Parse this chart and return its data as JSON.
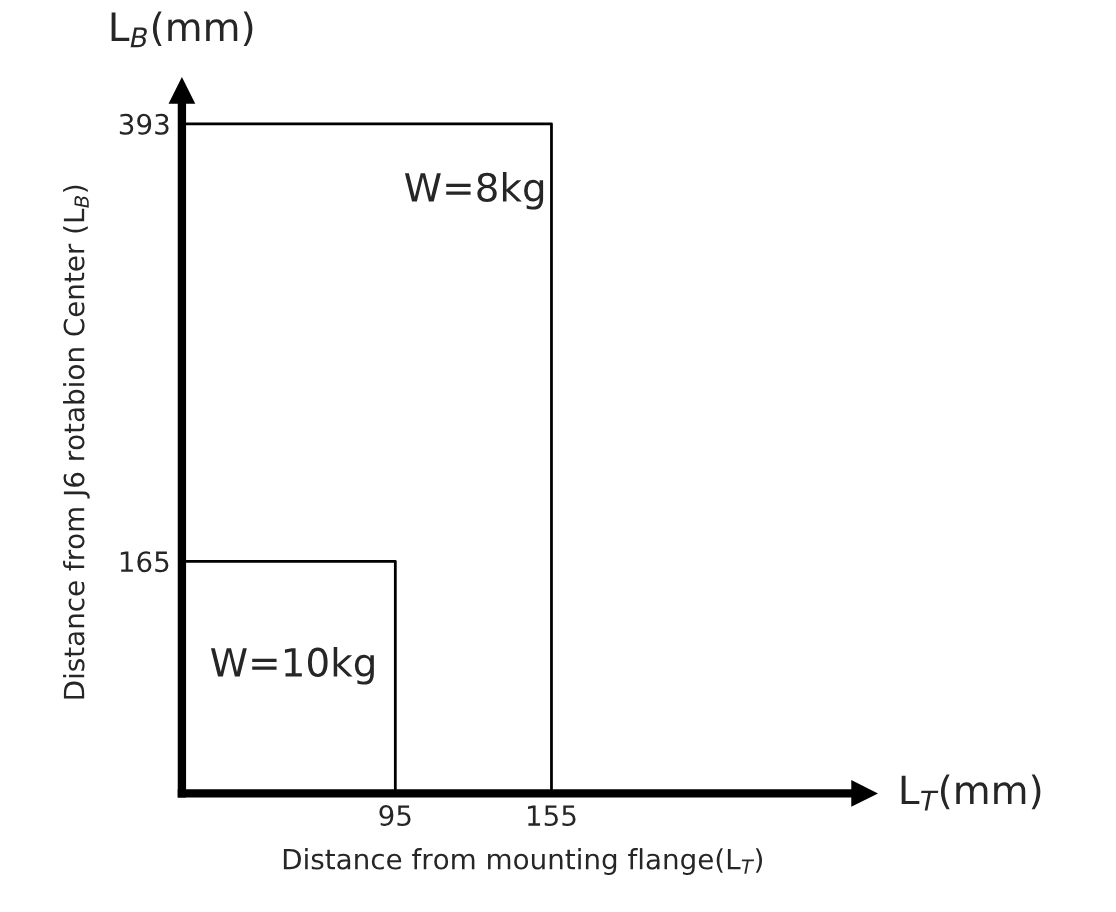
{
  "chart_data": {
    "type": "line",
    "xlabel": "Distance from mounting flange(L$_{T}$)",
    "ylabel": "Distance from J6 rotabion Center (L$_{B}$)",
    "annotations": [
      "L$_{T}$(mm)",
      "L$_{B}$(mm)"
    ],
    "series": [
      {
        "name": "W=10kg",
        "color": "#000000",
        "x": [
          13,
          95,
          95
        ],
        "values": [
          165,
          165,
          44
        ]
      },
      {
        "name": "W=8kg",
        "color": "#000000",
        "x": [
          13,
          155,
          155
        ],
        "values": [
          393,
          393,
          44
        ]
      }
    ],
    "xlim": [
      13,
      275
    ],
    "ylim": [
      44,
      410
    ],
    "xticks": [
      95,
      155
    ],
    "yticks": [
      165,
      393
    ],
    "grid": false,
    "legend": false,
    "marker": "none",
    "line_style": "solid"
  }
}
